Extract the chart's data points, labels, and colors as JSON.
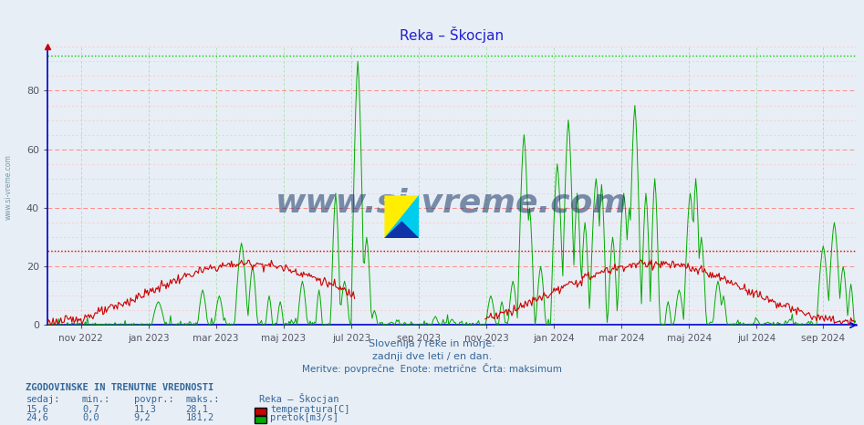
{
  "title": "Reka – Škocjan",
  "title_color": "#2222cc",
  "bg_color": "#e8eef5",
  "plot_bg_color": "#e8eef5",
  "ylim": [
    0,
    95
  ],
  "yticks": [
    0,
    20,
    40,
    60,
    80
  ],
  "temp_color": "#cc0000",
  "flow_color": "#00aa00",
  "dotted_red_y": 25.4,
  "dotted_green_y": 92.0,
  "subtitle1": "Slovenija / reke in morje.",
  "subtitle2": "zadnji dve leti / en dan.",
  "subtitle3": "Meritve: povprečne  Enote: metrične  Črta: maksimum",
  "subtitle_color": "#336699",
  "watermark": "www.si-vreme.com",
  "info_header": "ZGODOVINSKE IN TRENUTNE VREDNOSTI",
  "info_color": "#336699",
  "col_sedaj": "sedaj:",
  "col_min": "min.:",
  "col_povpr": "povpr.:",
  "col_maks": "maks.:",
  "col_station": "Reka – Škocjan",
  "temp_sedaj": "15,6",
  "temp_min": "0,7",
  "temp_povpr": "11,3",
  "temp_maks": "28,1",
  "temp_label": "temperatura[C]",
  "flow_sedaj": "24,6",
  "flow_min": "0,0",
  "flow_povpr": "9,2",
  "flow_maks": "181,2",
  "flow_label": "pretok[m3/s]",
  "left_label": "www.si-vreme.com",
  "left_label_color": "#7799aa",
  "axis_color": "#0000cc",
  "x_tick_positions": [
    30,
    91,
    152,
    213,
    274,
    335,
    396,
    457,
    518,
    579,
    640,
    700
  ],
  "x_tick_labels": [
    "nov 2022",
    "jan 2023",
    "mar 2023",
    "maj 2023",
    "jul 2023",
    "sep 2023",
    "nov 2023",
    "jan 2024",
    "mar 2024",
    "maj 2024",
    "jul 2024",
    "sep 2024"
  ]
}
